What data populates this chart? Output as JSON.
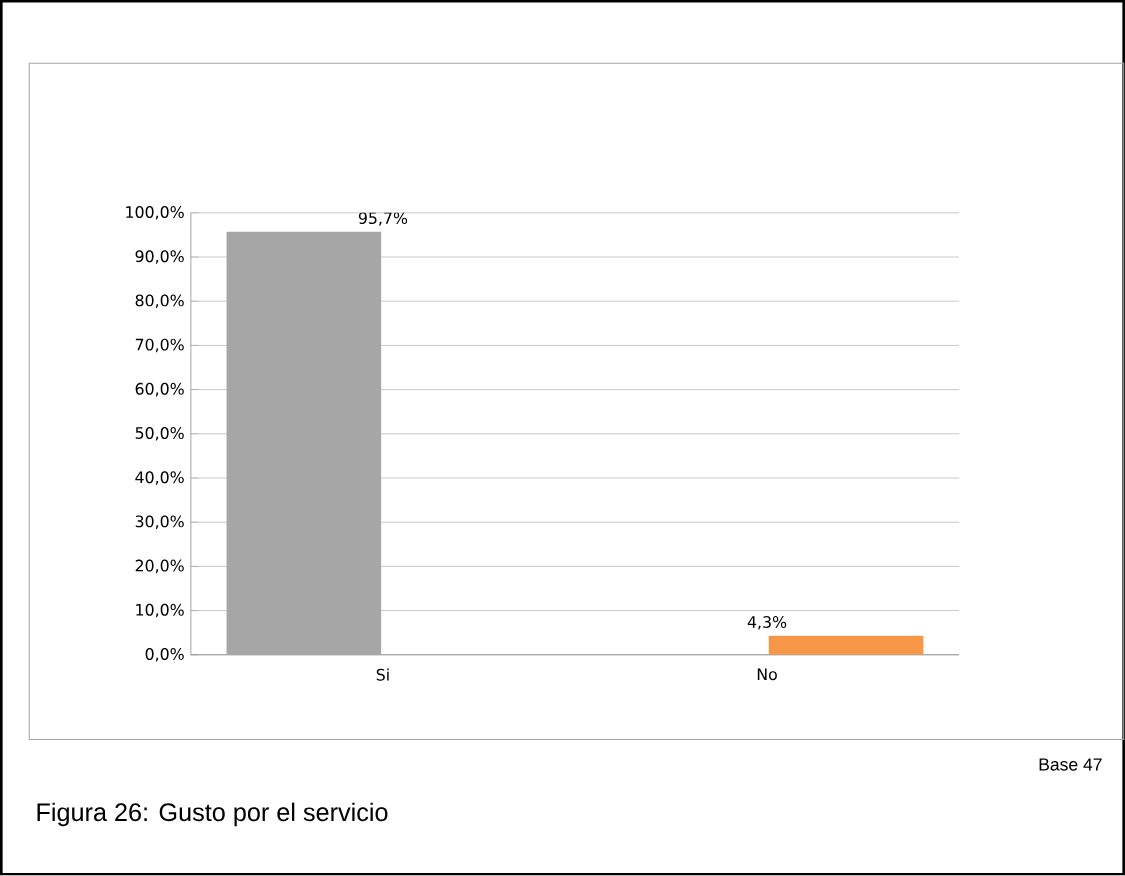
{
  "chart_data": {
    "type": "bar",
    "categories": [
      "Si",
      "No"
    ],
    "values": [
      95.7,
      4.3
    ],
    "colors": [
      "#a6a6a6",
      "#f79646"
    ],
    "value_labels": [
      "95,7%",
      "4,3%"
    ],
    "ylim": [
      0,
      100
    ],
    "yticks": [
      {
        "value": 0,
        "label": "0,0%"
      },
      {
        "value": 10,
        "label": "10,0%"
      },
      {
        "value": 20,
        "label": "20,0%"
      },
      {
        "value": 30,
        "label": "30,0%"
      },
      {
        "value": 40,
        "label": "40,0%"
      },
      {
        "value": 50,
        "label": "50,0%"
      },
      {
        "value": 60,
        "label": "60,0%"
      },
      {
        "value": 70,
        "label": "70,0%"
      },
      {
        "value": 80,
        "label": "80,0%"
      },
      {
        "value": 90,
        "label": "90,0%"
      },
      {
        "value": 100,
        "label": "100,0%"
      }
    ],
    "grid": "y",
    "annotations": [
      "Base 47",
      "Figura 26: Gusto por el servicio"
    ]
  }
}
